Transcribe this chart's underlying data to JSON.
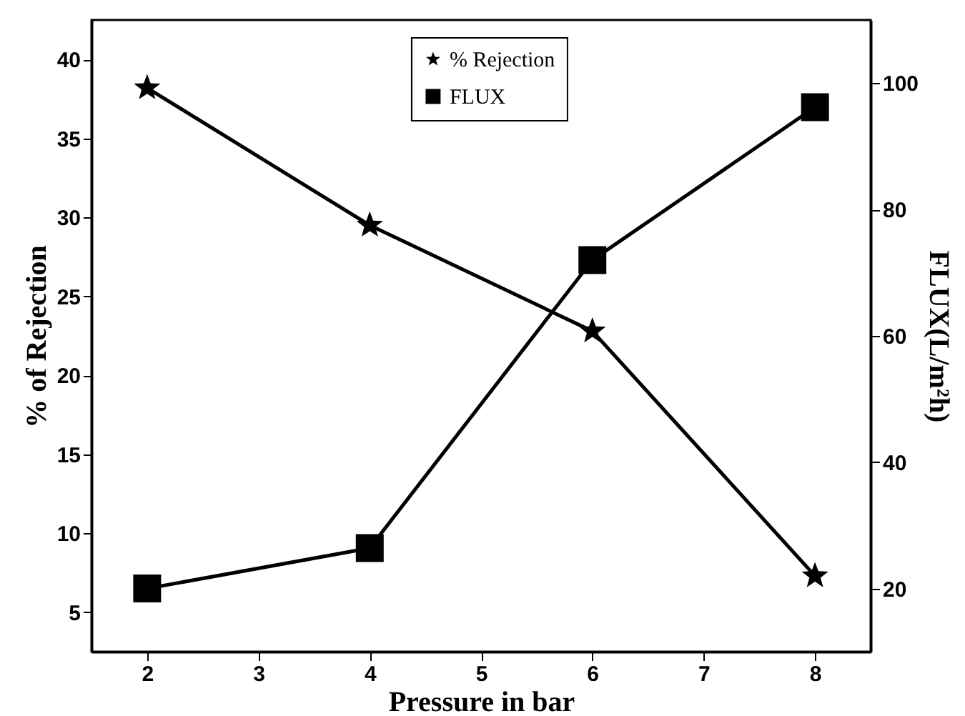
{
  "chart_data": {
    "type": "line",
    "xlabel": "Pressure in bar",
    "ylabel": "% of Rejection",
    "y2label": "FLUX(L/m²h)",
    "x": [
      2,
      4,
      6,
      8
    ],
    "series": [
      {
        "name": "% Rejection",
        "color": "#000000",
        "marker": "star",
        "values": [
          38.2,
          29.5,
          22.8,
          7.3
        ]
      },
      {
        "name": "FLUX",
        "color": "#000000",
        "marker": "square",
        "axis": "y2",
        "values": [
          20,
          26.4,
          72,
          96.2
        ]
      }
    ],
    "xlim": [
      1.5,
      8.5
    ],
    "xticks": [
      2,
      3,
      4,
      5,
      6,
      7,
      8
    ],
    "ylim": [
      2.5,
      42.5
    ],
    "yticks": [
      5,
      10,
      15,
      20,
      25,
      30,
      35,
      40
    ],
    "y2lim": [
      10,
      110
    ],
    "y2ticks": [
      20,
      40,
      60,
      80,
      100
    ],
    "legend": "top",
    "grid": false,
    "line_style": "solid"
  }
}
